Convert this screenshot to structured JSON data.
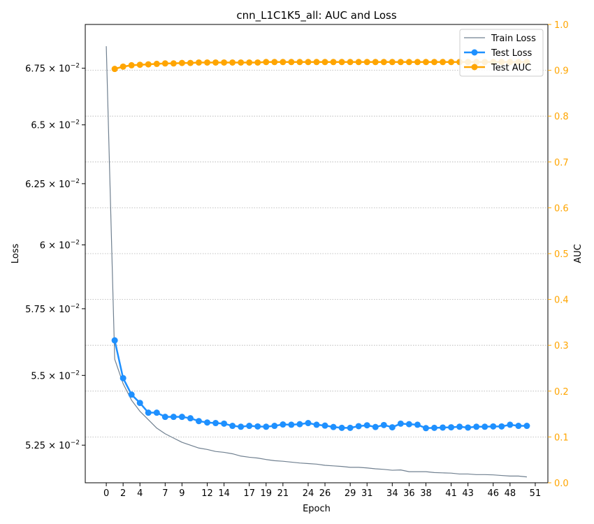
{
  "chart_data": {
    "type": "line",
    "title": "cnn_L1C1K5_all: AUC and Loss",
    "xlabel": "Epoch",
    "ylabel_left": "Loss",
    "ylabel_right": "AUC",
    "x_ticks": [
      0,
      2,
      4,
      7,
      9,
      12,
      14,
      17,
      19,
      21,
      24,
      26,
      29,
      31,
      34,
      36,
      38,
      41,
      43,
      46,
      48,
      51
    ],
    "xlim": [
      -2.5,
      52.5
    ],
    "left_axis": {
      "scale": "log",
      "ylim": [
        0.0512,
        0.0695
      ],
      "ticks": [
        {
          "value": 0.0525,
          "mantissa": "5.25",
          "exp": "−2"
        },
        {
          "value": 0.055,
          "mantissa": "5.5",
          "exp": "−2"
        },
        {
          "value": 0.0575,
          "mantissa": "5.75",
          "exp": "−2"
        },
        {
          "value": 0.06,
          "mantissa": "6",
          "exp": "−2"
        },
        {
          "value": 0.0625,
          "mantissa": "6.25",
          "exp": "−2"
        },
        {
          "value": 0.065,
          "mantissa": "6.5",
          "exp": "−2"
        },
        {
          "value": 0.0675,
          "mantissa": "6.75",
          "exp": "−2"
        }
      ]
    },
    "right_axis": {
      "scale": "linear",
      "ylim": [
        0.0,
        1.0
      ],
      "ticks": [
        "0.0",
        "0.1",
        "0.2",
        "0.3",
        "0.4",
        "0.5",
        "0.6",
        "0.7",
        "0.8",
        "0.9",
        "1.0"
      ],
      "color": "#ffa500"
    },
    "grid": "horizontal dotted (right axis)",
    "legend_position": "top-right",
    "series": [
      {
        "name": "Train Loss",
        "axis": "left",
        "color": "#708090",
        "marker": "none",
        "x": [
          0,
          1,
          2,
          3,
          4,
          5,
          6,
          7,
          8,
          9,
          10,
          11,
          12,
          13,
          14,
          15,
          16,
          17,
          18,
          19,
          20,
          21,
          22,
          23,
          24,
          25,
          26,
          27,
          28,
          29,
          30,
          31,
          32,
          33,
          34,
          35,
          36,
          37,
          38,
          39,
          40,
          41,
          42,
          43,
          44,
          45,
          46,
          47,
          48,
          49,
          50
        ],
        "values": [
          0.0685,
          0.0556,
          0.0547,
          0.0541,
          0.0537,
          0.0534,
          0.0531,
          0.0529,
          0.05275,
          0.0526,
          0.0525,
          0.0524,
          0.05235,
          0.05228,
          0.05225,
          0.0522,
          0.05212,
          0.05208,
          0.05205,
          0.052,
          0.05196,
          0.05194,
          0.05191,
          0.05188,
          0.05186,
          0.05184,
          0.0518,
          0.05178,
          0.05176,
          0.05173,
          0.05173,
          0.05171,
          0.05168,
          0.05166,
          0.05163,
          0.05164,
          0.05158,
          0.05158,
          0.05158,
          0.05155,
          0.05154,
          0.05153,
          0.0515,
          0.0515,
          0.05148,
          0.05148,
          0.05147,
          0.05145,
          0.05143,
          0.05143,
          0.0514
        ]
      },
      {
        "name": "Test Loss",
        "axis": "left",
        "color": "#1e90ff",
        "marker": "circle",
        "x": [
          1,
          2,
          3,
          4,
          5,
          6,
          7,
          8,
          9,
          10,
          11,
          12,
          13,
          14,
          15,
          16,
          17,
          18,
          19,
          20,
          21,
          22,
          23,
          24,
          25,
          26,
          27,
          28,
          29,
          30,
          31,
          32,
          33,
          34,
          35,
          36,
          37,
          38,
          39,
          40,
          41,
          42,
          43,
          44,
          45,
          46,
          47,
          48,
          49,
          50
        ],
        "values": [
          0.0563,
          0.0549,
          0.0543,
          0.054,
          0.05365,
          0.05365,
          0.0535,
          0.0535,
          0.0535,
          0.05345,
          0.05335,
          0.0533,
          0.05328,
          0.05326,
          0.05318,
          0.05315,
          0.05318,
          0.05316,
          0.05315,
          0.05318,
          0.05323,
          0.05322,
          0.05324,
          0.05328,
          0.05322,
          0.05319,
          0.05314,
          0.05311,
          0.05311,
          0.05317,
          0.0532,
          0.05314,
          0.05321,
          0.05313,
          0.05326,
          0.05324,
          0.05322,
          0.0531,
          0.05311,
          0.05312,
          0.05313,
          0.05315,
          0.05312,
          0.05315,
          0.05315,
          0.05316,
          0.05316,
          0.05322,
          0.05318,
          0.05318
        ]
      },
      {
        "name": "Test AUC",
        "axis": "right",
        "color": "#ffa500",
        "marker": "circle",
        "x": [
          1,
          2,
          3,
          4,
          5,
          6,
          7,
          8,
          9,
          10,
          11,
          12,
          13,
          14,
          15,
          16,
          17,
          18,
          19,
          20,
          21,
          22,
          23,
          24,
          25,
          26,
          27,
          28,
          29,
          30,
          31,
          32,
          33,
          34,
          35,
          36,
          37,
          38,
          39,
          40,
          41,
          42,
          43,
          44,
          45,
          46,
          47,
          48,
          49,
          50
        ],
        "values": [
          0.903,
          0.908,
          0.911,
          0.912,
          0.913,
          0.914,
          0.915,
          0.915,
          0.916,
          0.916,
          0.917,
          0.917,
          0.917,
          0.917,
          0.917,
          0.917,
          0.917,
          0.917,
          0.918,
          0.918,
          0.918,
          0.918,
          0.918,
          0.918,
          0.918,
          0.918,
          0.918,
          0.918,
          0.918,
          0.918,
          0.918,
          0.918,
          0.918,
          0.918,
          0.918,
          0.918,
          0.918,
          0.918,
          0.918,
          0.918,
          0.918,
          0.918,
          0.918,
          0.918,
          0.918,
          0.918,
          0.918,
          0.918,
          0.918,
          0.918
        ]
      }
    ]
  }
}
